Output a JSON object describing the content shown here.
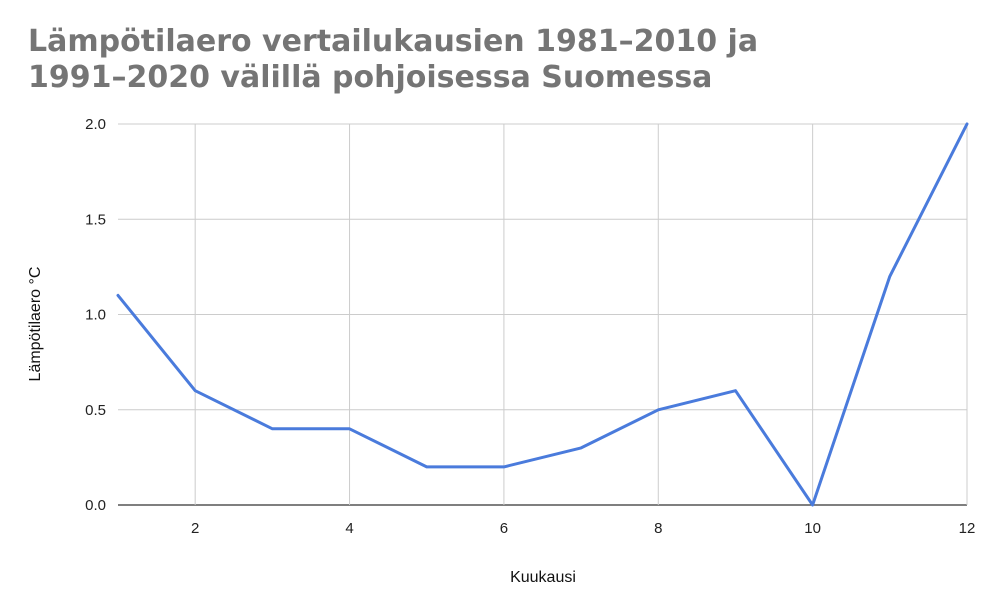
{
  "chart_data": {
    "type": "line",
    "title_lines": [
      "Lämpötilaero vertailukausien 1981–2010 ja",
      "1991–2020 välillä pohjoisessa Suomessa"
    ],
    "xlabel": "Kuukausi",
    "ylabel": "Lämpötilaero °C",
    "x": [
      1,
      2,
      3,
      4,
      5,
      6,
      7,
      8,
      9,
      10,
      11,
      12
    ],
    "series": [
      {
        "values": [
          1.1,
          0.6,
          0.4,
          0.4,
          0.2,
          0.2,
          0.3,
          0.5,
          0.6,
          0.0,
          1.2,
          2.0
        ],
        "color": "#4a7bdc"
      }
    ],
    "xlim": [
      1,
      12
    ],
    "ylim": [
      0,
      2
    ],
    "xticks": [
      "2",
      "4",
      "6",
      "8",
      "10",
      "12"
    ],
    "yticks": [
      "0.0",
      "0.5",
      "1.0",
      "1.5",
      "2.0"
    ],
    "grid": true,
    "legend": "none"
  }
}
